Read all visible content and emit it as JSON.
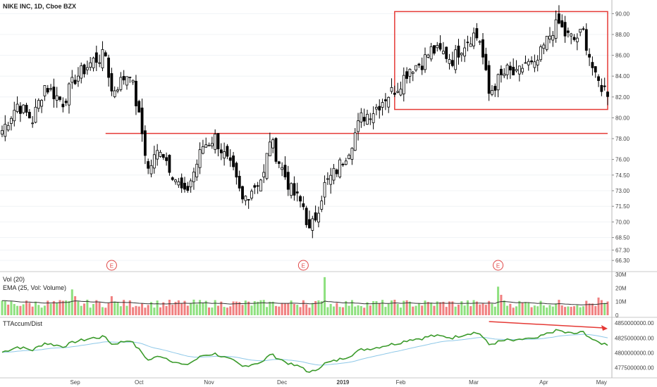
{
  "header": {
    "symbol_title": "NIKE INC, 1D, Cboe BZX"
  },
  "panes": {
    "volume_label": "Vol (20)",
    "ema_label": "EMA (25, Vol: Volume)",
    "accum_label": "TTAccum/Dist"
  },
  "colors": {
    "up": "#ffffff",
    "down": "#000000",
    "vol_up": "#8ee07f",
    "vol_down": "#f08080",
    "line_green": "#3a9a2a",
    "line_blue": "#8ec8e8",
    "annot_red": "#e53935",
    "earnings": "#e04848"
  },
  "chart_data": {
    "type": "candlestick",
    "price_axis": {
      "range": [
        65.5,
        90.5
      ],
      "ticks": [
        "90.00",
        "88.00",
        "86.00",
        "84.00",
        "82.00",
        "80.00",
        "78.00",
        "76.00",
        "74.50",
        "73.00",
        "71.50",
        "70.00",
        "68.50",
        "67.30",
        "66.30"
      ]
    },
    "volume_axis": {
      "range": [
        0,
        30000000
      ],
      "ticks": [
        "30M",
        "20M",
        "10M",
        "0"
      ]
    },
    "accum_axis": {
      "range": [
        4760000000,
        4855000000
      ],
      "ticks": [
        "4850000000.00",
        "4825000000.00",
        "4800000000.00",
        "4775000000.00"
      ]
    },
    "x_labels": [
      "Sep",
      "Oct",
      "Nov",
      "Dec",
      "2019",
      "Feb",
      "Mar",
      "Apr",
      "May"
    ],
    "earnings_marker": "E",
    "earnings_sessions": [
      36,
      99,
      163
    ],
    "annotations": {
      "resistance_level": 78.5,
      "range_box": {
        "from_session": 129,
        "to_session": 199,
        "low": 80.8,
        "high": 90.2
      },
      "divergence_arrow_from_session": 160,
      "divergence_arrow_to_session": 199
    },
    "anchors": [
      [
        0,
        78.8
      ],
      [
        5,
        81.3
      ],
      [
        10,
        79.8
      ],
      [
        14,
        83.1
      ],
      [
        20,
        81.5
      ],
      [
        24,
        83.8
      ],
      [
        30,
        85.5
      ],
      [
        34,
        86.0
      ],
      [
        36,
        82.5
      ],
      [
        42,
        84.5
      ],
      [
        46,
        78.5
      ],
      [
        48,
        75.0
      ],
      [
        52,
        77.2
      ],
      [
        56,
        74.7
      ],
      [
        60,
        72.5
      ],
      [
        63,
        74.8
      ],
      [
        66,
        77.3
      ],
      [
        70,
        78.1
      ],
      [
        74,
        75.8
      ],
      [
        76,
        74.7
      ],
      [
        79,
        72.0
      ],
      [
        82,
        73.2
      ],
      [
        86,
        74.5
      ],
      [
        88,
        78.0
      ],
      [
        90,
        76.5
      ],
      [
        95,
        73.0
      ],
      [
        99,
        71.5
      ],
      [
        101,
        69.0
      ],
      [
        103,
        70.5
      ],
      [
        106,
        73.5
      ],
      [
        110,
        75.0
      ],
      [
        114,
        77.0
      ],
      [
        118,
        80.0
      ],
      [
        122,
        80.7
      ],
      [
        126,
        82.0
      ],
      [
        130,
        83.0
      ],
      [
        134,
        84.8
      ],
      [
        138,
        85.3
      ],
      [
        141,
        86.5
      ],
      [
        145,
        86.2
      ],
      [
        148,
        85.6
      ],
      [
        151,
        86.8
      ],
      [
        153,
        87.5
      ],
      [
        155,
        88.0
      ],
      [
        157,
        87.5
      ],
      [
        160,
        82.3
      ],
      [
        163,
        83.6
      ],
      [
        166,
        84.5
      ],
      [
        169,
        84.0
      ],
      [
        172,
        85.3
      ],
      [
        175,
        84.8
      ],
      [
        178,
        86.8
      ],
      [
        181,
        88.5
      ],
      [
        183,
        89.0
      ],
      [
        185,
        88.0
      ],
      [
        188,
        87.5
      ],
      [
        191,
        88.2
      ],
      [
        193,
        86.0
      ],
      [
        195,
        83.7
      ],
      [
        197,
        83.0
      ],
      [
        199,
        82.5
      ]
    ],
    "candle_count": 200
  }
}
